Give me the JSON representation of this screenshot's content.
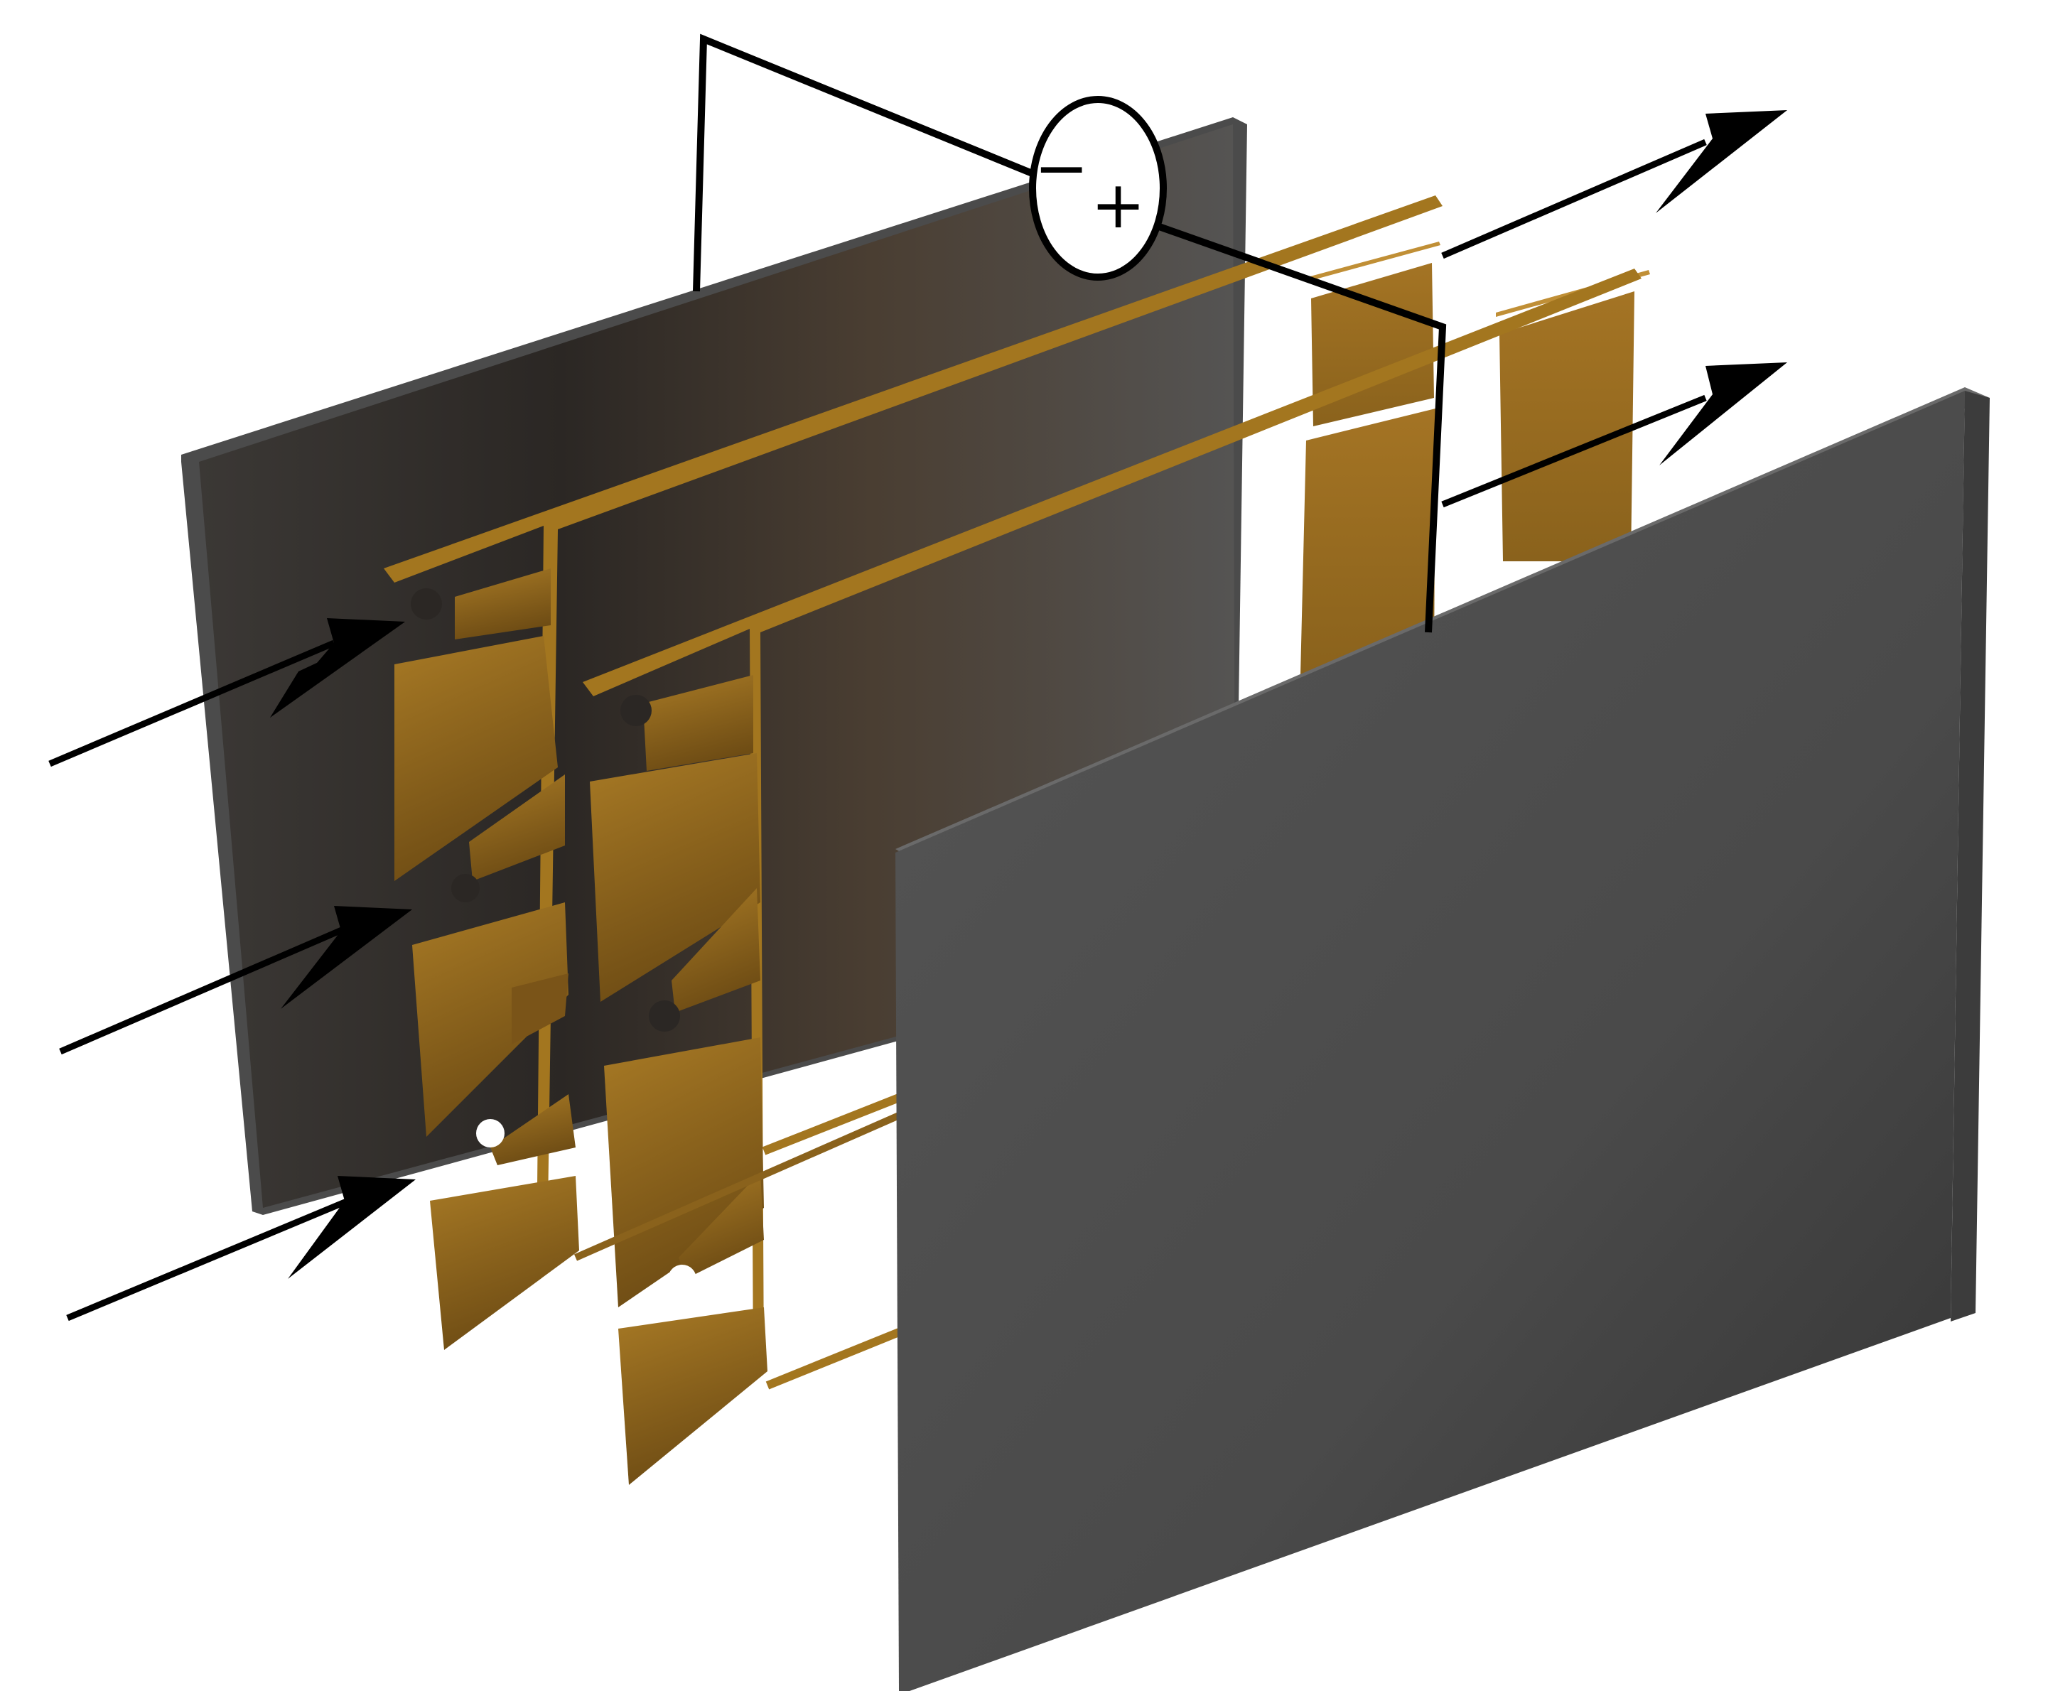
{
  "figure": {
    "background": "#ffffff",
    "components": {
      "back_plate": "dark-graphite-plate",
      "front_plate": "dark-graphite-plate",
      "electrode_frames": 2,
      "flow_in_arrows": 3,
      "flow_out_arrows": 2
    },
    "power_source": {
      "minus_label": "−",
      "plus_label": "+"
    },
    "colors": {
      "plate_dark": "#3a3532",
      "plate_front": "#4e4e4e",
      "electrode_gold": "#9b6d1e",
      "electrode_gold_light": "#b8862a",
      "wire": "#000000"
    }
  }
}
